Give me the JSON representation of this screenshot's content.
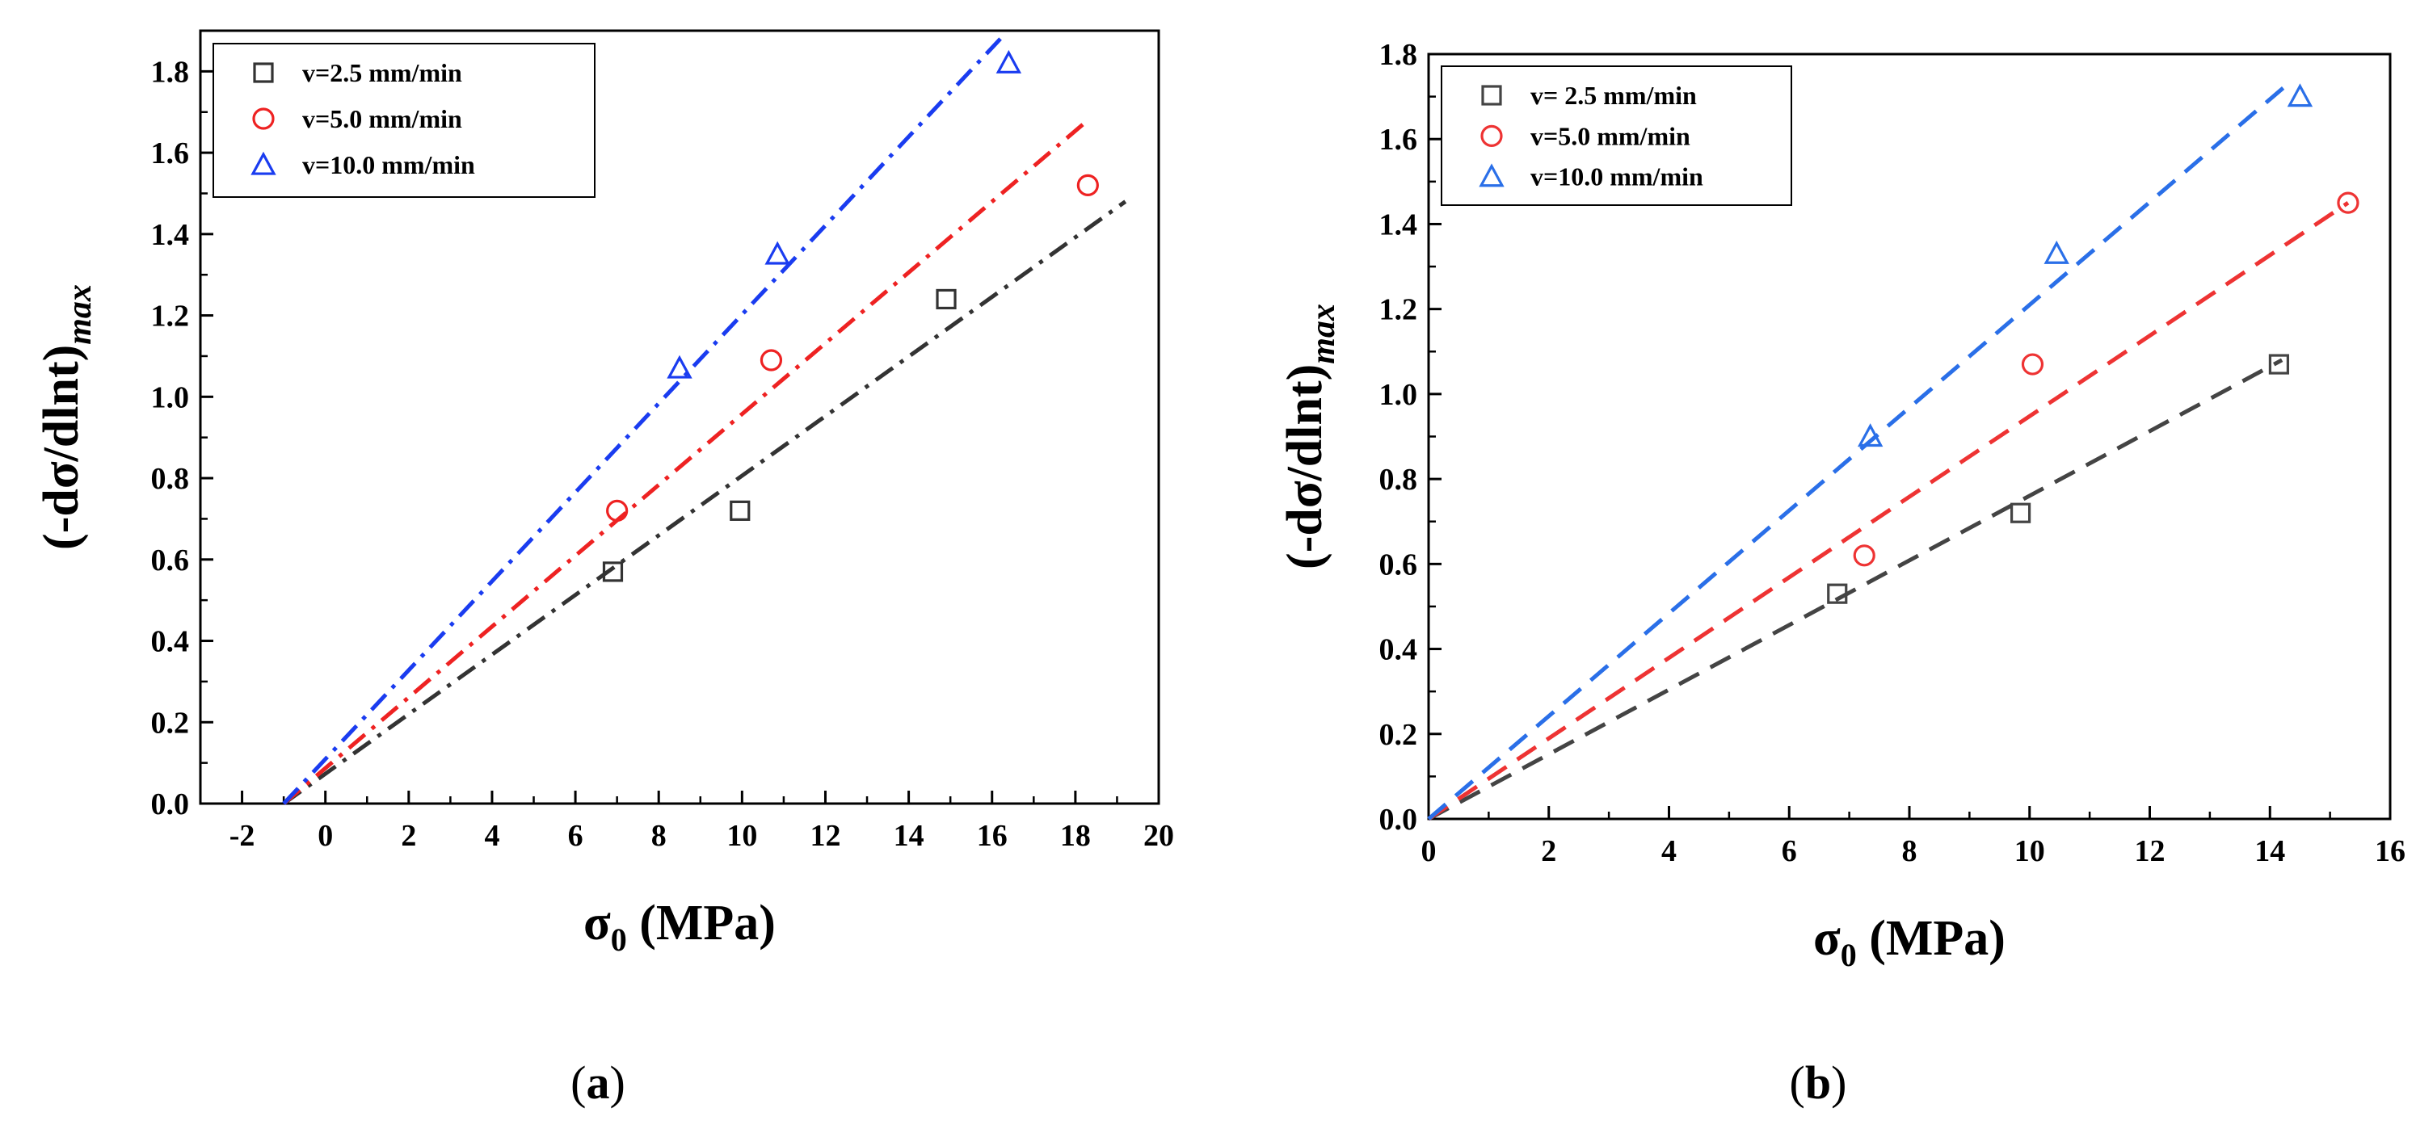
{
  "chart_data": [
    {
      "type": "scatter",
      "panel": "a",
      "caption": {
        "open": "(",
        "letter": "a",
        "close": ")"
      },
      "xlabel": {
        "sym": "σ",
        "sub": "0",
        "units": " (MPa)"
      },
      "ylabel": {
        "main": "(-dσ/dlnt)",
        "sub": "max"
      },
      "xlim": [
        -3,
        20
      ],
      "ylim": [
        0,
        1.9
      ],
      "xticks": [
        -2,
        0,
        2,
        4,
        6,
        8,
        10,
        12,
        14,
        16,
        18,
        20
      ],
      "yticks": [
        0.0,
        0.2,
        0.4,
        0.6,
        0.8,
        1.0,
        1.2,
        1.4,
        1.6,
        1.8
      ],
      "xtick_labels": [
        "-2",
        "0",
        "2",
        "4",
        "6",
        "8",
        "10",
        "12",
        "14",
        "16",
        "18",
        "20"
      ],
      "ytick_labels": [
        "0.0",
        "0.2",
        "0.4",
        "0.6",
        "0.8",
        "1.0",
        "1.2",
        "1.4",
        "1.6",
        "1.8"
      ],
      "line_style": "dash-dot",
      "legend_position": "top-left",
      "series": [
        {
          "name": "v=2.5 mm/min",
          "marker": "square",
          "color": "#333333",
          "x": [
            6.9,
            9.95,
            14.9
          ],
          "y": [
            0.57,
            0.72,
            1.24
          ],
          "fit_x": [
            -1.0,
            19.2
          ],
          "fit_y": [
            0.0,
            1.48
          ]
        },
        {
          "name": "v=5.0 mm/min",
          "marker": "circle",
          "color": "#ee2222",
          "x": [
            7.0,
            10.7,
            18.3
          ],
          "y": [
            0.72,
            1.09,
            1.52
          ],
          "fit_x": [
            -1.0,
            18.3
          ],
          "fit_y": [
            0.0,
            1.68
          ]
        },
        {
          "name": "v=10.0 mm/min",
          "marker": "triangle",
          "color": "#1a3cf0",
          "x": [
            8.5,
            10.85,
            16.4
          ],
          "y": [
            1.07,
            1.35,
            1.82
          ],
          "fit_x": [
            -1.0,
            16.2
          ],
          "fit_y": [
            0.0,
            1.88
          ]
        }
      ]
    },
    {
      "type": "scatter",
      "panel": "b",
      "caption": {
        "open": "(",
        "letter": "b",
        "close": ")"
      },
      "xlabel": {
        "sym": "σ",
        "sub": "0",
        "units": " (MPa)"
      },
      "ylabel": {
        "main": "(-dσ/dlnt)",
        "sub": "max"
      },
      "xlim": [
        0,
        16
      ],
      "ylim": [
        0,
        1.8
      ],
      "xticks": [
        0,
        2,
        4,
        6,
        8,
        10,
        12,
        14,
        16
      ],
      "yticks": [
        0.0,
        0.2,
        0.4,
        0.6,
        0.8,
        1.0,
        1.2,
        1.4,
        1.6,
        1.8
      ],
      "xtick_labels": [
        "0",
        "2",
        "4",
        "6",
        "8",
        "10",
        "12",
        "14",
        "16"
      ],
      "ytick_labels": [
        "0.0",
        "0.2",
        "0.4",
        "0.6",
        "0.8",
        "1.0",
        "1.2",
        "1.4",
        "1.6",
        "1.8"
      ],
      "line_style": "dashed",
      "legend_position": "top-left",
      "series": [
        {
          "name": "v= 2.5 mm/min",
          "marker": "square",
          "color": "#444444",
          "x": [
            6.8,
            9.85,
            14.15
          ],
          "y": [
            0.53,
            0.72,
            1.07
          ],
          "fit_x": [
            0.0,
            14.2
          ],
          "fit_y": [
            0.0,
            1.08
          ]
        },
        {
          "name": "v=5.0 mm/min",
          "marker": "circle",
          "color": "#ee3333",
          "x": [
            7.25,
            10.05,
            15.3
          ],
          "y": [
            0.62,
            1.07,
            1.45
          ],
          "fit_x": [
            0.0,
            15.3
          ],
          "fit_y": [
            0.0,
            1.45
          ]
        },
        {
          "name": "v=10.0 mm/min",
          "marker": "triangle",
          "color": "#2a6fe8",
          "x": [
            7.35,
            10.45,
            14.5
          ],
          "y": [
            0.9,
            1.33,
            1.7
          ],
          "fit_x": [
            0.0,
            14.3
          ],
          "fit_y": [
            0.0,
            1.73
          ]
        }
      ]
    }
  ]
}
